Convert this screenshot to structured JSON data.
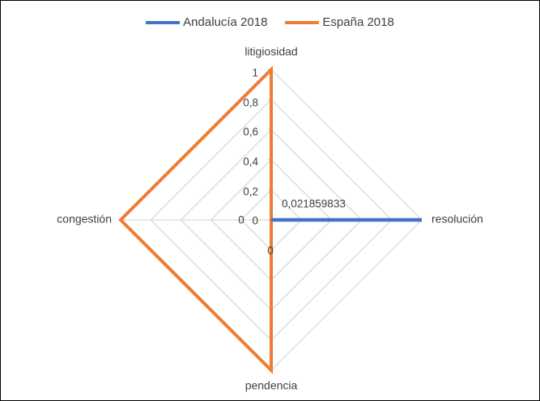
{
  "chart_data": {
    "type": "radar",
    "categories": [
      "litigiosidad",
      "resolución",
      "pendencia",
      "congestión"
    ],
    "series": [
      {
        "name": "Andalucía 2018",
        "values": [
          0,
          1,
          0,
          0
        ],
        "color": "#4472C4"
      },
      {
        "name": "España 2018",
        "values": [
          1,
          0,
          1,
          1
        ],
        "color": "#ED7D31"
      }
    ],
    "radial_ticks": [
      "0",
      "0,2",
      "0,4",
      "0,6",
      "0,8",
      "1"
    ],
    "radial_range": [
      0,
      1
    ],
    "annotations": [
      "0,021859833",
      "0",
      "0",
      "0"
    ],
    "legend": "top",
    "grid": true
  }
}
